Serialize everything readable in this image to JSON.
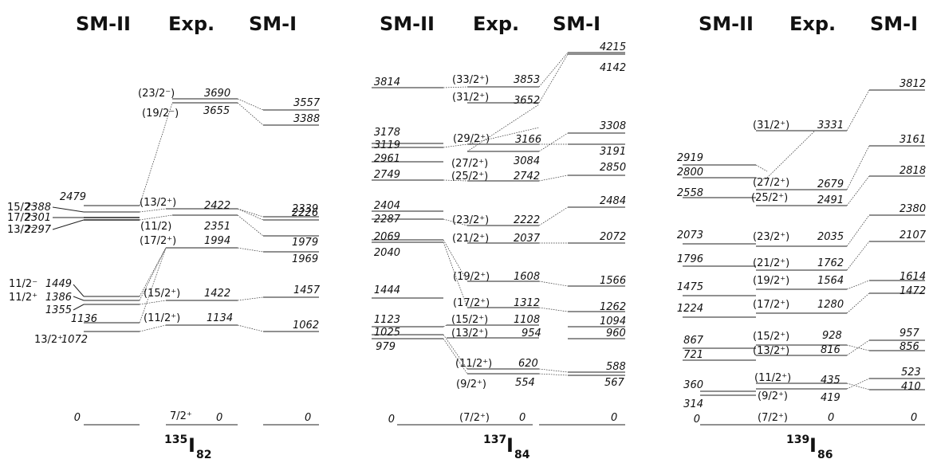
{
  "panels": [
    {
      "headers": {
        "left": "SM-II",
        "mid": "Exp.",
        "right": "SM-I"
      },
      "nucleus": {
        "mass": "135",
        "symbol": "I",
        "neutrons": "82"
      },
      "smII": [
        {
          "text": "0"
        },
        {
          "text": "1072"
        },
        {
          "text": "1136"
        },
        {
          "text": "1355"
        },
        {
          "text": "1386"
        },
        {
          "text": "1449"
        },
        {
          "text": "2297"
        },
        {
          "text": "2301"
        },
        {
          "text": "2388"
        },
        {
          "text": "2479"
        }
      ],
      "smIISpins": [
        {
          "text": "13/2⁺"
        },
        {
          "text": "11/2⁺"
        },
        {
          "text": "11/2⁻"
        },
        {
          "text": "13/2⁻"
        },
        {
          "text": "17/2⁻"
        },
        {
          "text": "15/2⁻"
        }
      ],
      "exp": [
        {
          "spin": "7/2⁺",
          "value": "0"
        },
        {
          "spin": "(11/2⁺)",
          "value": "1134"
        },
        {
          "spin": "(15/2⁺)",
          "value": "1422"
        },
        {
          "spin": "(17/2⁺)",
          "value": "1994"
        },
        {
          "spin": "(11/2)",
          "value": "2351"
        },
        {
          "spin": "(13/2⁺)",
          "value": "2422"
        },
        {
          "spin": "(19/2⁻)",
          "value": "3655"
        },
        {
          "spin": "(23/2⁻)",
          "value": "3690"
        }
      ],
      "smI": [
        {
          "text": "0"
        },
        {
          "text": "1062"
        },
        {
          "text": "1457"
        },
        {
          "text": "1969"
        },
        {
          "text": "1979"
        },
        {
          "text": "2226"
        },
        {
          "text": "2339"
        },
        {
          "text": "3388"
        },
        {
          "text": "3557"
        }
      ]
    },
    {
      "headers": {
        "left": "SM-II",
        "mid": "Exp.",
        "right": "SM-I"
      },
      "nucleus": {
        "mass": "137",
        "symbol": "I",
        "neutrons": "84"
      },
      "smII": [
        {
          "text": "0"
        },
        {
          "text": "979"
        },
        {
          "text": "1025"
        },
        {
          "text": "1123"
        },
        {
          "text": "1444"
        },
        {
          "text": "2040"
        },
        {
          "text": "2069"
        },
        {
          "text": "2287"
        },
        {
          "text": "2404"
        },
        {
          "text": "2749"
        },
        {
          "text": "2961"
        },
        {
          "text": "3119"
        },
        {
          "text": "3178"
        },
        {
          "text": "3814"
        }
      ],
      "exp": [
        {
          "spin": "(7/2⁺)",
          "value": "0"
        },
        {
          "spin": "(9/2⁺)",
          "value": "554"
        },
        {
          "spin": "(11/2⁺)",
          "value": "620"
        },
        {
          "spin": "(13/2⁺)",
          "value": "954"
        },
        {
          "spin": "(15/2⁺)",
          "value": "1108"
        },
        {
          "spin": "(17/2⁺)",
          "value": "1312"
        },
        {
          "spin": "(19/2⁺)",
          "value": "1608"
        },
        {
          "spin": "(21/2⁺)",
          "value": "2037"
        },
        {
          "spin": "(23/2⁺)",
          "value": "2222"
        },
        {
          "spin": "(25/2⁺)",
          "value": "2742"
        },
        {
          "spin": "(27/2⁺)",
          "value": "3084"
        },
        {
          "spin": "(29/2⁺)",
          "value": "3166"
        },
        {
          "spin": "(31/2⁺)",
          "value": "3652"
        },
        {
          "spin": "(33/2⁺)",
          "value": "3853"
        }
      ],
      "smI": [
        {
          "text": "0"
        },
        {
          "text": "567"
        },
        {
          "text": "588"
        },
        {
          "text": "960"
        },
        {
          "text": "1094"
        },
        {
          "text": "1262"
        },
        {
          "text": "1566"
        },
        {
          "text": "2072"
        },
        {
          "text": "2484"
        },
        {
          "text": "2850"
        },
        {
          "text": "3191"
        },
        {
          "text": "3308"
        },
        {
          "text": "4142"
        },
        {
          "text": "4215"
        }
      ]
    },
    {
      "headers": {
        "left": "SM-II",
        "mid": "Exp.",
        "right": "SM-I"
      },
      "nucleus": {
        "mass": "139",
        "symbol": "I",
        "neutrons": "86"
      },
      "smII": [
        {
          "text": "0"
        },
        {
          "text": "314"
        },
        {
          "text": "360"
        },
        {
          "text": "721"
        },
        {
          "text": "867"
        },
        {
          "text": "1224"
        },
        {
          "text": "1475"
        },
        {
          "text": "1796"
        },
        {
          "text": "2073"
        },
        {
          "text": "2558"
        },
        {
          "text": "2800"
        },
        {
          "text": "2919"
        }
      ],
      "exp": [
        {
          "spin": "(7/2⁺)",
          "value": "0"
        },
        {
          "spin": "(9/2⁺)",
          "value": "419"
        },
        {
          "spin": "(11/2⁺)",
          "value": "435"
        },
        {
          "spin": "(13/2⁺)",
          "value": "816"
        },
        {
          "spin": "(15/2⁺)",
          "value": "928"
        },
        {
          "spin": "(17/2⁺)",
          "value": "1280"
        },
        {
          "spin": "(19/2⁺)",
          "value": "1564"
        },
        {
          "spin": "(21/2⁺)",
          "value": "1762"
        },
        {
          "spin": "(23/2⁺)",
          "value": "2035"
        },
        {
          "spin": "(25/2⁺)",
          "value": "2491"
        },
        {
          "spin": "(27/2⁺)",
          "value": "2679"
        },
        {
          "spin": "(31/2⁺)",
          "value": "3331"
        }
      ],
      "smI": [
        {
          "text": "0"
        },
        {
          "text": "410"
        },
        {
          "text": "523"
        },
        {
          "text": "856"
        },
        {
          "text": "957"
        },
        {
          "text": "1472"
        },
        {
          "text": "1614"
        },
        {
          "text": "2107"
        },
        {
          "text": "2380"
        },
        {
          "text": "2818"
        },
        {
          "text": "3161"
        },
        {
          "text": "3812"
        }
      ]
    }
  ]
}
